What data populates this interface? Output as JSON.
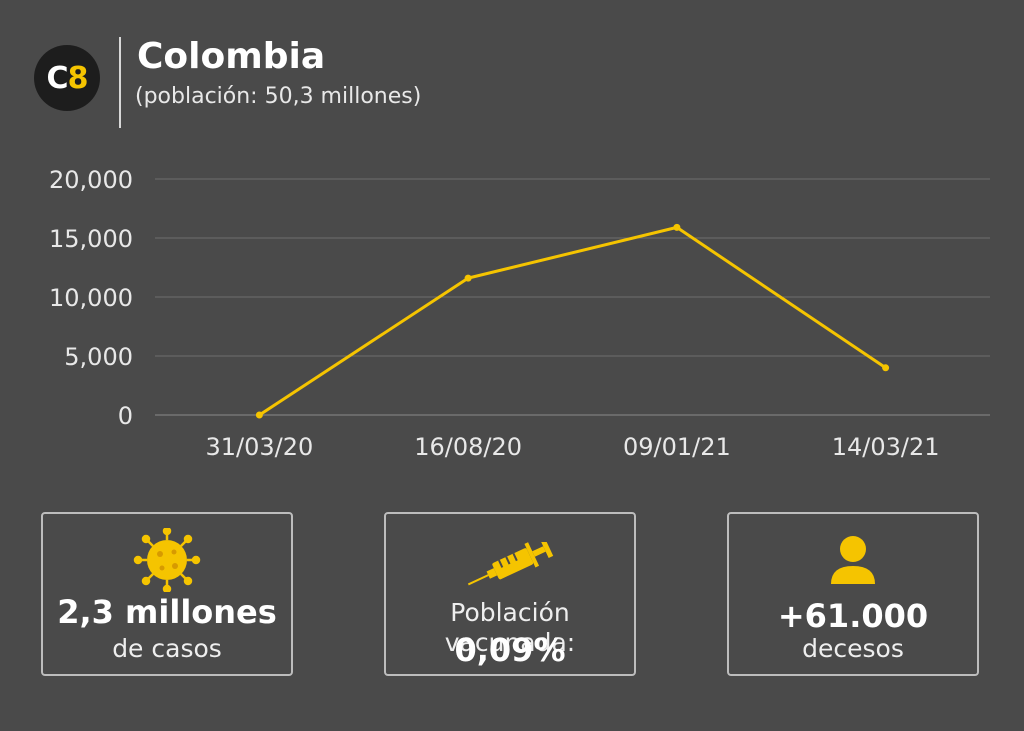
{
  "header": {
    "logo_c": "C",
    "logo_n": "8",
    "title": "Colombia",
    "subtitle": "(población: 50,3 millones)"
  },
  "colors": {
    "background": "#4a4a4a",
    "accent": "#f5c400",
    "grid": "#6e6e6e"
  },
  "chart_data": {
    "type": "line",
    "x": [
      "31/03/20",
      "16/08/20",
      "09/01/21",
      "14/03/21"
    ],
    "series": [
      {
        "values": [
          0,
          11600,
          15900,
          4000
        ]
      }
    ],
    "y_ticks": [
      "20,000",
      "15,000",
      "10,000",
      "5,000",
      "0"
    ],
    "y_tick_values": [
      20000,
      15000,
      10000,
      5000,
      0
    ],
    "ylim": [
      0,
      20000
    ],
    "grid": true
  },
  "stats": {
    "cases": {
      "icon": "virus-icon",
      "value": "2,3 millones",
      "label": "de casos"
    },
    "vaccinated": {
      "icon": "syringe-icon",
      "label": "Población vacunada:",
      "value": "0,09%"
    },
    "deaths": {
      "icon": "person-icon",
      "value": "+61.000",
      "label": "decesos"
    }
  }
}
